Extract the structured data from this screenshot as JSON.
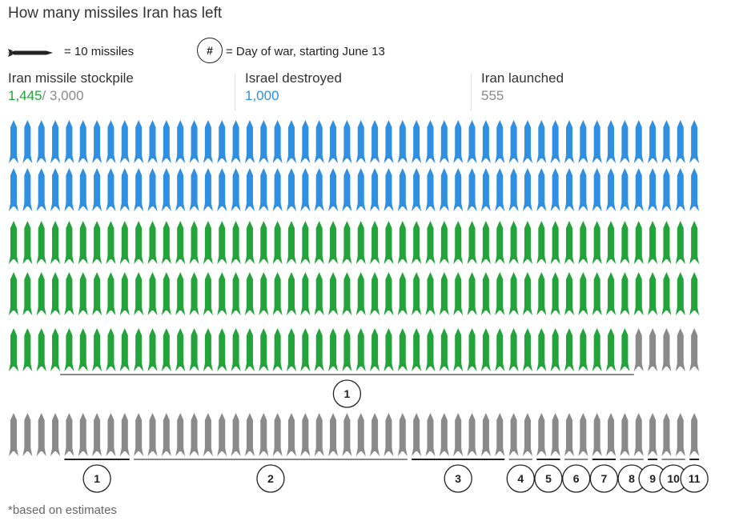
{
  "title": "How many missiles Iran has left",
  "legend": {
    "missile_label": "= 10 missiles",
    "day_symbol": "#",
    "day_label": "= Day of war, starting June 13"
  },
  "stats": {
    "stockpile": {
      "label": "Iran missile stockpile",
      "value": "1,445",
      "total": "/ 3,000"
    },
    "destroyed": {
      "label": "Israel destroyed",
      "value": "1,000"
    },
    "launched": {
      "label": "Iran launched",
      "value": "555"
    }
  },
  "footnote": "*based on estimates",
  "colors": {
    "destroyed": "#2f8fe0",
    "remaining": "#22a43a",
    "launched": "#8a8a8a",
    "text_dark": "#333333",
    "text_gray": "#8a8a8a"
  },
  "chart_data": {
    "type": "pictogram",
    "unit": 10,
    "total": 3000,
    "segments": [
      {
        "name": "Israel destroyed",
        "value": 1000,
        "icons": 100
      },
      {
        "name": "Iran missile stockpile",
        "value": 1445,
        "icons": 145
      },
      {
        "name": "Iran launched",
        "value": 555,
        "icons": 55
      }
    ],
    "launch_days": [
      {
        "day": "1",
        "icons": 9
      },
      {
        "day": "1",
        "icons": 5
      },
      {
        "day": "2",
        "icons": 20
      },
      {
        "day": "3",
        "icons": 7
      },
      {
        "day": "4",
        "icons": 2
      },
      {
        "day": "5",
        "icons": 2
      },
      {
        "day": "6",
        "icons": 2
      },
      {
        "day": "7",
        "icons": 2
      },
      {
        "day": "8",
        "icons": 2
      },
      {
        "day": "9",
        "icons": 1
      },
      {
        "day": "10",
        "icons": 2
      },
      {
        "day": "11",
        "icons": 1
      }
    ]
  }
}
